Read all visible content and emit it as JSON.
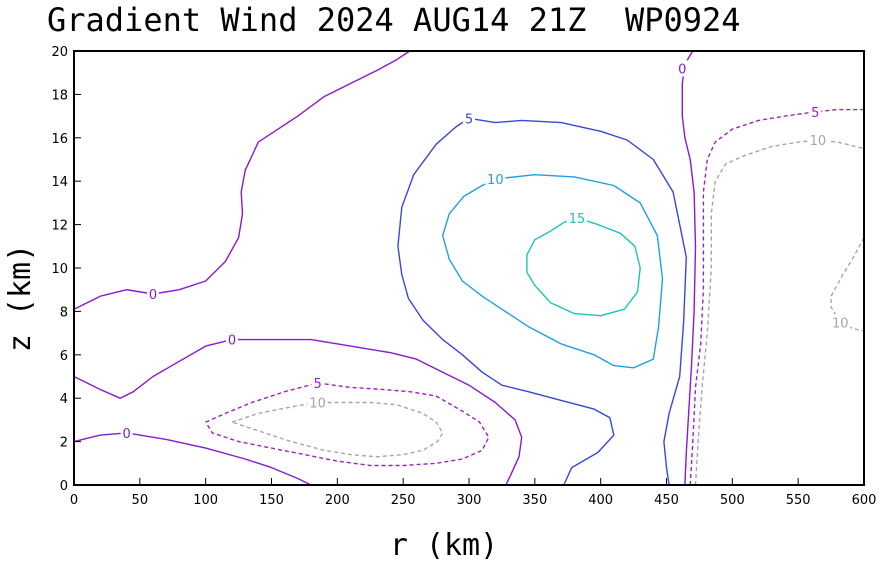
{
  "chart_data": {
    "type": "contour",
    "title": "Gradient Wind 2024 AUG14 21Z  WP0924",
    "xlabel": "r (km)",
    "ylabel": "z (km)",
    "xlim": [
      0,
      600
    ],
    "ylim": [
      0,
      20
    ],
    "x_ticks": [
      0,
      50,
      100,
      150,
      200,
      250,
      300,
      350,
      400,
      450,
      500,
      550,
      600
    ],
    "y_ticks": [
      0,
      2,
      4,
      6,
      8,
      10,
      12,
      14,
      16,
      18,
      20
    ],
    "grid": false,
    "contour_colors": {
      "-10": "#a6a6a6",
      "-5": "#a020c0",
      "0": "#8a1ad0",
      "5": "#3848d8",
      "10": "#1fa0e0",
      "15": "#20c0c0"
    },
    "contours": [
      {
        "level": 0,
        "label": "0",
        "dashed": false,
        "label_at": [
          60,
          8.8
        ],
        "points": [
          [
            0,
            8.1
          ],
          [
            20,
            8.7
          ],
          [
            40,
            9.0
          ],
          [
            60,
            8.8
          ],
          [
            80,
            9.0
          ],
          [
            100,
            9.4
          ],
          [
            115,
            10.3
          ],
          [
            125,
            11.4
          ],
          [
            128,
            12.5
          ],
          [
            127,
            13.5
          ],
          [
            130,
            14.5
          ],
          [
            140,
            15.8
          ],
          [
            155,
            16.4
          ],
          [
            170,
            17.0
          ],
          [
            190,
            17.9
          ],
          [
            210,
            18.5
          ],
          [
            230,
            19.1
          ],
          [
            245,
            19.6
          ],
          [
            255,
            20.0
          ]
        ]
      },
      {
        "level": 0,
        "label": "0",
        "dashed": false,
        "label_at": [
          120,
          6.7
        ],
        "points": [
          [
            0,
            5.0
          ],
          [
            20,
            4.4
          ],
          [
            35,
            4.0
          ],
          [
            45,
            4.3
          ],
          [
            60,
            5.0
          ],
          [
            80,
            5.7
          ],
          [
            100,
            6.4
          ],
          [
            120,
            6.7
          ],
          [
            150,
            6.7
          ],
          [
            180,
            6.7
          ],
          [
            210,
            6.4
          ],
          [
            240,
            6.1
          ],
          [
            260,
            5.8
          ],
          [
            280,
            5.2
          ],
          [
            300,
            4.6
          ],
          [
            320,
            3.8
          ],
          [
            335,
            3.0
          ],
          [
            340,
            2.2
          ],
          [
            338,
            1.3
          ],
          [
            332,
            0.5
          ],
          [
            328,
            0.0
          ]
        ]
      },
      {
        "level": 0,
        "label": "0",
        "dashed": false,
        "label_at": [
          40,
          2.4
        ],
        "points": [
          [
            0,
            2.0
          ],
          [
            20,
            2.3
          ],
          [
            40,
            2.4
          ],
          [
            70,
            2.1
          ],
          [
            100,
            1.7
          ],
          [
            130,
            1.2
          ],
          [
            150,
            0.8
          ],
          [
            170,
            0.3
          ],
          [
            180,
            0.0
          ]
        ]
      },
      {
        "level": 0,
        "label": "0",
        "dashed": false,
        "label_at": [
          462,
          19.2
        ],
        "points": [
          [
            470,
            20.0
          ],
          [
            464,
            19.4
          ],
          [
            462,
            18.5
          ],
          [
            462,
            17.0
          ],
          [
            464,
            16.0
          ],
          [
            468,
            15.0
          ],
          [
            471,
            13.5
          ],
          [
            472,
            11.0
          ],
          [
            471,
            8.0
          ],
          [
            469,
            5.5
          ],
          [
            467,
            3.5
          ],
          [
            465,
            1.5
          ],
          [
            464,
            0.0
          ]
        ]
      },
      {
        "level": 5,
        "label": "5",
        "dashed": false,
        "label_at": [
          300,
          16.9
        ],
        "points": [
          [
            372,
            0.0
          ],
          [
            378,
            0.8
          ],
          [
            398,
            1.5
          ],
          [
            410,
            2.3
          ],
          [
            407,
            3.1
          ],
          [
            395,
            3.5
          ],
          [
            370,
            3.9
          ],
          [
            345,
            4.3
          ],
          [
            325,
            4.6
          ],
          [
            310,
            5.2
          ],
          [
            295,
            6.0
          ],
          [
            280,
            6.7
          ],
          [
            265,
            7.6
          ],
          [
            254,
            8.6
          ],
          [
            249,
            9.7
          ],
          [
            246,
            11.0
          ],
          [
            249,
            12.8
          ],
          [
            258,
            14.3
          ],
          [
            275,
            15.7
          ],
          [
            290,
            16.5
          ],
          [
            300,
            16.9
          ],
          [
            320,
            16.7
          ],
          [
            340,
            16.8
          ],
          [
            370,
            16.7
          ],
          [
            400,
            16.3
          ],
          [
            420,
            15.9
          ],
          [
            440,
            15.0
          ],
          [
            455,
            13.5
          ],
          [
            465,
            10.5
          ],
          [
            463,
            7.5
          ],
          [
            460,
            5.0
          ],
          [
            452,
            3.3
          ],
          [
            448,
            2.0
          ],
          [
            450,
            0.8
          ],
          [
            452,
            0.0
          ]
        ]
      },
      {
        "level": 10,
        "label": "10",
        "dashed": false,
        "label_at": [
          320,
          14.1
        ],
        "points": [
          [
            320,
            14.1
          ],
          [
            350,
            14.3
          ],
          [
            380,
            14.2
          ],
          [
            410,
            13.8
          ],
          [
            430,
            13.0
          ],
          [
            443,
            11.5
          ],
          [
            447,
            9.5
          ],
          [
            444,
            7.3
          ],
          [
            440,
            5.8
          ],
          [
            425,
            5.4
          ],
          [
            410,
            5.5
          ],
          [
            395,
            6.0
          ],
          [
            370,
            6.5
          ],
          [
            345,
            7.3
          ],
          [
            325,
            8.1
          ],
          [
            310,
            8.7
          ],
          [
            295,
            9.4
          ],
          [
            285,
            10.4
          ],
          [
            280,
            11.5
          ],
          [
            285,
            12.5
          ],
          [
            296,
            13.3
          ],
          [
            310,
            13.8
          ],
          [
            320,
            14.1
          ]
        ]
      },
      {
        "level": 15,
        "label": "15",
        "dashed": false,
        "label_at": [
          382,
          12.3
        ],
        "points": [
          [
            382,
            12.3
          ],
          [
            398,
            12.0
          ],
          [
            415,
            11.6
          ],
          [
            426,
            11.0
          ],
          [
            430,
            10.0
          ],
          [
            428,
            8.9
          ],
          [
            418,
            8.1
          ],
          [
            400,
            7.8
          ],
          [
            380,
            7.9
          ],
          [
            362,
            8.4
          ],
          [
            350,
            9.2
          ],
          [
            344,
            9.8
          ],
          [
            344,
            10.6
          ],
          [
            350,
            11.3
          ],
          [
            362,
            11.7
          ],
          [
            372,
            12.1
          ],
          [
            382,
            12.3
          ]
        ]
      },
      {
        "level": -5,
        "label": "5",
        "dashed": true,
        "label_at": [
          185,
          4.7
        ],
        "points": [
          [
            100,
            2.9
          ],
          [
            115,
            3.3
          ],
          [
            135,
            3.8
          ],
          [
            160,
            4.3
          ],
          [
            185,
            4.7
          ],
          [
            210,
            4.5
          ],
          [
            235,
            4.4
          ],
          [
            255,
            4.3
          ],
          [
            275,
            4.1
          ],
          [
            295,
            3.4
          ],
          [
            308,
            2.9
          ],
          [
            315,
            2.2
          ],
          [
            310,
            1.6
          ],
          [
            295,
            1.2
          ],
          [
            275,
            1.0
          ],
          [
            250,
            0.9
          ],
          [
            225,
            0.9
          ],
          [
            200,
            1.1
          ],
          [
            175,
            1.4
          ],
          [
            150,
            1.7
          ],
          [
            125,
            2.0
          ],
          [
            105,
            2.4
          ],
          [
            100,
            2.9
          ]
        ]
      },
      {
        "level": -5,
        "label": "5",
        "dashed": true,
        "label_at": [
          563,
          17.2
        ],
        "points": [
          [
            468,
            0.0
          ],
          [
            470,
            2.0
          ],
          [
            472,
            4.5
          ],
          [
            476,
            6.5
          ],
          [
            478,
            9.0
          ],
          [
            478,
            11.5
          ],
          [
            478,
            13.5
          ],
          [
            481,
            15.0
          ],
          [
            487,
            15.8
          ],
          [
            500,
            16.4
          ],
          [
            520,
            16.8
          ],
          [
            540,
            17.0
          ],
          [
            563,
            17.2
          ],
          [
            580,
            17.3
          ],
          [
            600,
            17.3
          ]
        ]
      },
      {
        "level": -10,
        "label": "10",
        "dashed": true,
        "label_at": [
          185,
          3.8
        ],
        "points": [
          [
            120,
            2.9
          ],
          [
            140,
            3.3
          ],
          [
            165,
            3.6
          ],
          [
            185,
            3.8
          ],
          [
            205,
            3.8
          ],
          [
            225,
            3.8
          ],
          [
            245,
            3.7
          ],
          [
            265,
            3.3
          ],
          [
            275,
            2.9
          ],
          [
            280,
            2.4
          ],
          [
            276,
            2.0
          ],
          [
            265,
            1.6
          ],
          [
            250,
            1.4
          ],
          [
            230,
            1.3
          ],
          [
            210,
            1.4
          ],
          [
            190,
            1.6
          ],
          [
            165,
            2.0
          ],
          [
            140,
            2.5
          ],
          [
            120,
            2.9
          ]
        ]
      },
      {
        "level": -10,
        "label": "10",
        "dashed": true,
        "label_at": [
          565,
          15.9
        ],
        "points": [
          [
            472,
            0.0
          ],
          [
            474,
            2.0
          ],
          [
            477,
            4.5
          ],
          [
            481,
            7.0
          ],
          [
            484,
            10.0
          ],
          [
            484,
            12.5
          ],
          [
            487,
            14.0
          ],
          [
            495,
            14.8
          ],
          [
            510,
            15.2
          ],
          [
            530,
            15.6
          ],
          [
            550,
            15.8
          ],
          [
            565,
            15.9
          ],
          [
            580,
            15.8
          ],
          [
            600,
            15.5
          ]
        ]
      },
      {
        "level": -10,
        "label": "10",
        "dashed": true,
        "label_at": [
          582,
          7.5
        ],
        "points": [
          [
            600,
            11.4
          ],
          [
            592,
            10.5
          ],
          [
            583,
            9.6
          ],
          [
            575,
            8.7
          ],
          [
            575,
            8.2
          ],
          [
            582,
            7.5
          ],
          [
            592,
            7.2
          ],
          [
            600,
            7.1
          ]
        ]
      }
    ]
  }
}
